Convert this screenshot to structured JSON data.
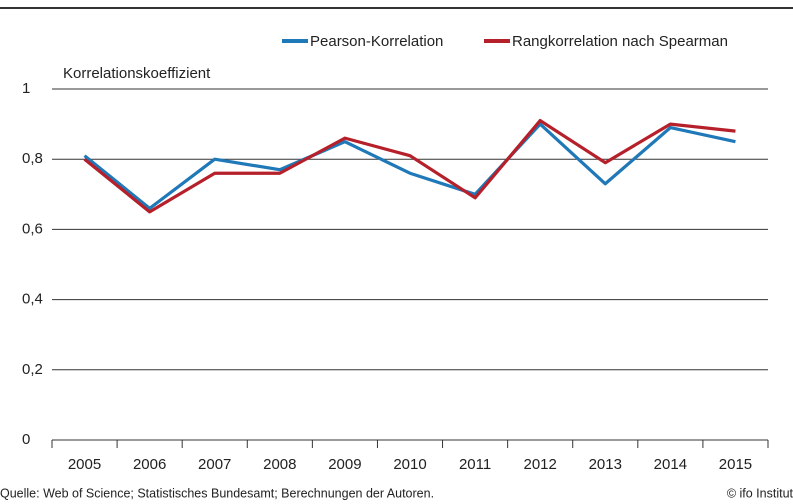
{
  "chart_data": {
    "type": "line",
    "y_label": "Korrelationskoeffizient",
    "categories": [
      "2005",
      "2006",
      "2007",
      "2008",
      "2009",
      "2010",
      "2011",
      "2012",
      "2013",
      "2014",
      "2015"
    ],
    "series": [
      {
        "name": "Pearson-Korrelation",
        "color": "#1f78b8",
        "values": [
          0.81,
          0.66,
          0.8,
          0.77,
          0.85,
          0.76,
          0.7,
          0.9,
          0.73,
          0.89,
          0.85
        ]
      },
      {
        "name": "Rangkorrelation nach Spearman",
        "color": "#b5202a",
        "values": [
          0.8,
          0.65,
          0.76,
          0.76,
          0.86,
          0.81,
          0.69,
          0.91,
          0.79,
          0.9,
          0.88
        ]
      }
    ],
    "ylim": [
      0,
      1
    ],
    "yticks": [
      0,
      {
        "value": 0.2,
        "label": "0,2"
      },
      {
        "value": 0.4,
        "label": "0,4"
      },
      {
        "value": 0.6,
        "label": "0,6"
      },
      {
        "value": 0.8,
        "label": "0,8"
      },
      1
    ],
    "grid": true,
    "legend": "top-right",
    "source": "Quelle: Web of Science; Statistisches Bundesamt; Berechnungen der Autoren.",
    "credit": "© ifo Institut"
  }
}
